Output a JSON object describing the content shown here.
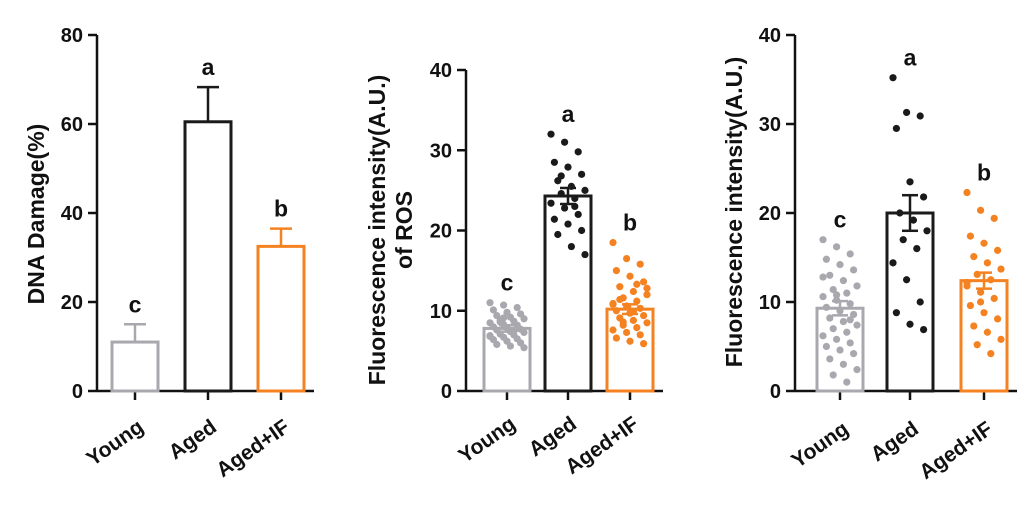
{
  "colors": {
    "Young": "#a8a8ae",
    "Aged": "#1a1a1a",
    "Aged+IF": "#f58220",
    "axis": "#111111"
  },
  "chart_data": [
    {
      "type": "bar",
      "ylabel": "DNA Damage(%)",
      "ylim": [
        0,
        80
      ],
      "yticks": [
        "0",
        "20",
        "40",
        "60",
        "80"
      ],
      "categories": [
        "Young",
        "Aged",
        "Aged+IF"
      ],
      "values": [
        11,
        60.5,
        32.5
      ],
      "errors": [
        4,
        7.8,
        4
      ],
      "letters": [
        "c",
        "a",
        "b"
      ],
      "points": [
        [],
        [],
        []
      ]
    },
    {
      "type": "bar",
      "ylabel": "Fluorescence intensity(A.U.) of ROS",
      "ylabel_lines": [
        "Fluorescence intensity(A.U.)",
        "of ROS"
      ],
      "ylim": [
        0,
        40
      ],
      "yticks": [
        "0",
        "10",
        "20",
        "30",
        "40"
      ],
      "categories": [
        "Young",
        "Aged",
        "Aged+IF"
      ],
      "values": [
        7.8,
        24.3,
        10.2
      ],
      "errors": [
        0.4,
        1.0,
        0.6
      ],
      "letters": [
        "c",
        "a",
        "b"
      ],
      "points": [
        [
          11.0,
          10.7,
          10.4,
          10.1,
          9.8,
          9.6,
          9.4,
          9.2,
          9.0,
          8.8,
          8.7,
          8.5,
          8.3,
          8.2,
          8.0,
          7.9,
          7.7,
          7.6,
          7.4,
          7.3,
          7.1,
          7.0,
          6.8,
          6.7,
          6.5,
          6.4,
          6.2,
          6.0,
          5.8,
          5.6,
          5.4,
          8.6,
          7.5,
          6.9,
          9.1,
          7.8
        ],
        [
          32.0,
          31.0,
          29.8,
          28.5,
          27.9,
          27.0,
          26.2,
          25.5,
          25.0,
          24.6,
          24.0,
          23.4,
          22.8,
          22.0,
          21.4,
          20.8,
          20.0,
          19.5,
          18.0,
          17.0,
          26.8,
          23.0
        ],
        [
          18.5,
          16.5,
          15.8,
          15.0,
          14.3,
          13.6,
          13.0,
          12.4,
          12.0,
          11.6,
          11.2,
          10.9,
          10.6,
          10.3,
          10.0,
          9.7,
          9.4,
          9.1,
          8.8,
          8.5,
          8.2,
          7.9,
          7.6,
          7.3,
          7.0,
          6.6,
          6.2,
          5.9,
          11.4,
          9.9,
          12.8,
          8.6,
          13.3,
          10.8
        ]
      ]
    },
    {
      "type": "bar",
      "ylabel": "Fluorescence intensity(A.U.)",
      "ylim": [
        0,
        40
      ],
      "yticks": [
        "0",
        "10",
        "20",
        "30",
        "40"
      ],
      "categories": [
        "Young",
        "Aged",
        "Aged+IF"
      ],
      "values": [
        9.3,
        20.0,
        12.4
      ],
      "errors": [
        0.8,
        2.0,
        0.9
      ],
      "letters": [
        "c",
        "a",
        "b"
      ],
      "points": [
        [
          17.0,
          16.2,
          15.4,
          14.8,
          14.2,
          13.6,
          13.0,
          12.4,
          11.8,
          11.4,
          11.0,
          10.6,
          10.2,
          9.8,
          9.4,
          9.0,
          8.6,
          8.2,
          7.8,
          7.4,
          7.0,
          6.6,
          6.2,
          5.8,
          5.4,
          5.0,
          4.6,
          4.2,
          3.6,
          3.0,
          2.4,
          1.8,
          1.0,
          12.8,
          10.8,
          8.0
        ],
        [
          35.2,
          31.3,
          30.9,
          29.5,
          23.5,
          21.8,
          20.0,
          19.2,
          18.0,
          17.0,
          16.0,
          14.4,
          12.5,
          10.0,
          8.8,
          7.5,
          6.9
        ],
        [
          22.3,
          20.3,
          19.4,
          17.4,
          16.6,
          15.8,
          15.1,
          14.4,
          13.7,
          13.1,
          12.5,
          11.8,
          11.1,
          10.4,
          9.6,
          8.8,
          8.1,
          7.3,
          6.6,
          5.8,
          5.2,
          4.2,
          12.2,
          10.0
        ]
      ]
    }
  ]
}
